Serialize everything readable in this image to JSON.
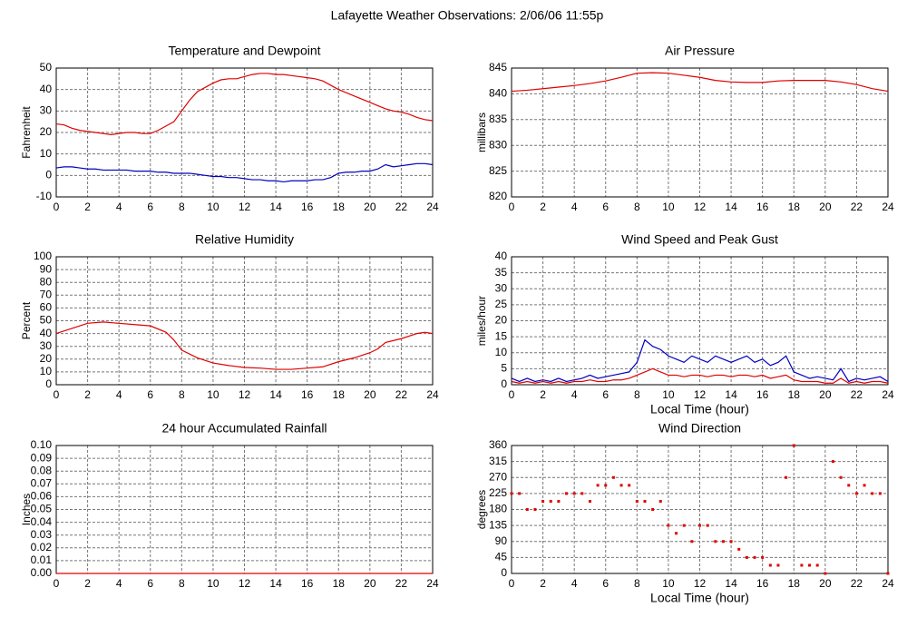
{
  "title": "Lafayette Weather Observations: 2/06/06 11:55p",
  "chart_data": [
    {
      "type": "line",
      "title": "Temperature and Dewpoint",
      "ylabel": "Fahrenheit",
      "x": [
        0,
        0.5,
        1,
        1.5,
        2,
        2.5,
        3,
        3.5,
        4,
        4.5,
        5,
        5.5,
        6,
        6.5,
        7,
        7.5,
        8,
        8.5,
        9,
        9.5,
        10,
        10.5,
        11,
        11.5,
        12,
        12.5,
        13,
        13.5,
        14,
        14.5,
        15,
        15.5,
        16,
        16.5,
        17,
        17.5,
        18,
        18.5,
        19,
        19.5,
        20,
        20.5,
        21,
        21.5,
        22,
        22.5,
        23,
        23.5,
        24
      ],
      "series": [
        {
          "color": "#e00000",
          "values": [
            24,
            23.5,
            22,
            21,
            20.5,
            20,
            19.5,
            19,
            19.5,
            20,
            20,
            19.5,
            19.5,
            21,
            23,
            25,
            30,
            35,
            39,
            41,
            43,
            44.5,
            45,
            45,
            46,
            47,
            47.5,
            47.5,
            47,
            47,
            46.5,
            46,
            45.5,
            45,
            44,
            42,
            40,
            38.5,
            37,
            35.5,
            34,
            32.5,
            31,
            30,
            29.5,
            28.5,
            27,
            26,
            25.5
          ]
        },
        {
          "color": "#0000c0",
          "values": [
            3.5,
            4,
            4,
            3.5,
            3,
            3,
            2.5,
            2.5,
            2.5,
            2.5,
            2,
            2,
            2,
            1.5,
            1.5,
            1,
            1,
            1,
            0.5,
            0,
            -0.5,
            -0.5,
            -1,
            -1,
            -1.5,
            -2,
            -2,
            -2.5,
            -2.5,
            -3,
            -2.5,
            -2.5,
            -2.5,
            -2,
            -2,
            -1,
            1,
            1.5,
            1.5,
            2,
            2,
            3,
            5,
            4,
            4.5,
            5,
            5.5,
            5.5,
            5
          ]
        }
      ],
      "xlim": [
        0,
        24
      ],
      "xticks": [
        0,
        2,
        4,
        6,
        8,
        10,
        12,
        14,
        16,
        18,
        20,
        22,
        24
      ],
      "ylim": [
        -10,
        50
      ],
      "yticks": [
        -10,
        0,
        10,
        20,
        30,
        40,
        50
      ],
      "grid": true
    },
    {
      "type": "line",
      "title": "Air Pressure",
      "ylabel": "millibars",
      "x": [
        0,
        1,
        2,
        3,
        4,
        5,
        6,
        7,
        8,
        9,
        10,
        11,
        12,
        13,
        14,
        15,
        16,
        17,
        18,
        19,
        20,
        21,
        22,
        23,
        24
      ],
      "series": [
        {
          "color": "#e00000",
          "values": [
            840.5,
            840.7,
            841,
            841.3,
            841.6,
            842,
            842.5,
            843.2,
            844,
            844.1,
            844,
            843.6,
            843.2,
            842.6,
            842.3,
            842.2,
            842.2,
            842.5,
            842.6,
            842.6,
            842.6,
            842.3,
            841.8,
            841,
            840.5
          ]
        }
      ],
      "xlim": [
        0,
        24
      ],
      "xticks": [
        0,
        2,
        4,
        6,
        8,
        10,
        12,
        14,
        16,
        18,
        20,
        22,
        24
      ],
      "ylim": [
        820,
        845
      ],
      "yticks": [
        820,
        825,
        830,
        835,
        840,
        845
      ],
      "grid": true
    },
    {
      "type": "line",
      "title": "Relative Humidity",
      "ylabel": "Percent",
      "x": [
        0,
        1,
        2,
        3,
        4,
        5,
        6,
        7,
        7.5,
        8,
        9,
        10,
        11,
        12,
        13,
        14,
        15,
        16,
        17,
        18,
        19,
        20,
        20.5,
        21,
        22,
        23,
        23.5,
        24
      ],
      "series": [
        {
          "color": "#e00000",
          "values": [
            40,
            44,
            48,
            49,
            48,
            47,
            46,
            41,
            35,
            27,
            21,
            17,
            15,
            13.5,
            13,
            12,
            12,
            13,
            14,
            18,
            21,
            25,
            28,
            33,
            36,
            40,
            41,
            40
          ]
        }
      ],
      "xlim": [
        0,
        24
      ],
      "xticks": [
        0,
        2,
        4,
        6,
        8,
        10,
        12,
        14,
        16,
        18,
        20,
        22,
        24
      ],
      "ylim": [
        0,
        100
      ],
      "yticks": [
        0,
        10,
        20,
        30,
        40,
        50,
        60,
        70,
        80,
        90,
        100
      ],
      "grid": true
    },
    {
      "type": "line",
      "title": "Wind Speed and Peak Gust",
      "ylabel": "miles/hour",
      "xlabel": "Local Time (hour)",
      "x": [
        0,
        0.5,
        1,
        1.5,
        2,
        2.5,
        3,
        3.5,
        4,
        4.5,
        5,
        5.5,
        6,
        6.5,
        7,
        7.5,
        8,
        8.5,
        9,
        9.5,
        10,
        10.5,
        11,
        11.5,
        12,
        12.5,
        13,
        13.5,
        14,
        14.5,
        15,
        15.5,
        16,
        16.5,
        17,
        17.5,
        18,
        18.5,
        19,
        19.5,
        20,
        20.5,
        21,
        21.5,
        22,
        22.5,
        23,
        23.5,
        24
      ],
      "series": [
        {
          "color": "#0000c0",
          "values": [
            2,
            1,
            2,
            1,
            1.5,
            1,
            2,
            1,
            1.5,
            2,
            3,
            2,
            2.5,
            3,
            3.5,
            4,
            7,
            14,
            12,
            11,
            9,
            8,
            7,
            9,
            8,
            7,
            9,
            8,
            7,
            8,
            9,
            7,
            8,
            6,
            7,
            9,
            4,
            3,
            2,
            2.5,
            2,
            1.5,
            5,
            1,
            2,
            1.5,
            2,
            2.5,
            1
          ]
        },
        {
          "color": "#e00000",
          "values": [
            1,
            0.5,
            1,
            0.5,
            1,
            0.5,
            1,
            0.5,
            1,
            1,
            1.5,
            1,
            1,
            1.5,
            1.5,
            2,
            3,
            4,
            5,
            4,
            3,
            3,
            2.5,
            3,
            3,
            2.5,
            3,
            3,
            2.5,
            3,
            3,
            2.5,
            3,
            2,
            2.5,
            3,
            1.5,
            1,
            1,
            1,
            0.5,
            0.5,
            2,
            0.5,
            1,
            0.5,
            1,
            1,
            0.5
          ]
        }
      ],
      "xlim": [
        0,
        24
      ],
      "xticks": [
        0,
        2,
        4,
        6,
        8,
        10,
        12,
        14,
        16,
        18,
        20,
        22,
        24
      ],
      "ylim": [
        0,
        40
      ],
      "yticks": [
        0,
        5,
        10,
        15,
        20,
        25,
        30,
        35,
        40
      ],
      "grid": true
    },
    {
      "type": "line",
      "title": "24 hour Accumulated Rainfall",
      "ylabel": "Inches",
      "x": [
        0,
        24
      ],
      "series": [
        {
          "color": "#e00000",
          "values": [
            0,
            0
          ]
        }
      ],
      "xlim": [
        0,
        24
      ],
      "xticks": [
        0,
        2,
        4,
        6,
        8,
        10,
        12,
        14,
        16,
        18,
        20,
        22,
        24
      ],
      "ylim": [
        0,
        0.1
      ],
      "yticks": [
        {
          "value": 0,
          "label": "0.00"
        },
        {
          "value": 0.01,
          "label": "0.01"
        },
        {
          "value": 0.02,
          "label": "0.02"
        },
        {
          "value": 0.03,
          "label": "0.03"
        },
        {
          "value": 0.04,
          "label": "0.04"
        },
        {
          "value": 0.05,
          "label": "0.05"
        },
        {
          "value": 0.06,
          "label": "0.06"
        },
        {
          "value": 0.07,
          "label": "0.07"
        },
        {
          "value": 0.08,
          "label": "0.08"
        },
        {
          "value": 0.09,
          "label": "0.09"
        },
        {
          "value": 0.1,
          "label": "0.10"
        }
      ],
      "grid": true
    },
    {
      "type": "scatter",
      "title": "Wind Direction",
      "ylabel": "degrees",
      "xlabel": "Local Time (hour)",
      "x": [
        0,
        0.5,
        1,
        1.5,
        2,
        2.5,
        3,
        3.5,
        4,
        4.5,
        5,
        5.5,
        6,
        6.5,
        7,
        7.5,
        8,
        8.5,
        9,
        9.5,
        10,
        10.5,
        11,
        11.5,
        12,
        12.5,
        13,
        13.5,
        14,
        14.5,
        15,
        15.5,
        16,
        16.5,
        17,
        17.5,
        18,
        18.5,
        19,
        19.5,
        20,
        20.5,
        21,
        21.5,
        22,
        22.5,
        23,
        23.5,
        24
      ],
      "series": [
        {
          "color": "#e00000",
          "values": [
            225,
            225,
            180,
            180,
            203,
            203,
            203,
            225,
            225,
            225,
            203,
            248,
            248,
            270,
            248,
            248,
            203,
            203,
            180,
            203,
            135,
            113,
            135,
            90,
            135,
            135,
            90,
            90,
            90,
            68,
            45,
            45,
            45,
            23,
            23,
            270,
            360,
            23,
            23,
            23,
            0,
            315,
            270,
            248,
            225,
            248,
            225,
            225,
            0
          ]
        }
      ],
      "xlim": [
        0,
        24
      ],
      "xticks": [
        0,
        2,
        4,
        6,
        8,
        10,
        12,
        14,
        16,
        18,
        20,
        22,
        24
      ],
      "ylim": [
        0,
        360
      ],
      "yticks": [
        0,
        45,
        90,
        135,
        180,
        225,
        270,
        315,
        360
      ],
      "grid": true
    }
  ]
}
